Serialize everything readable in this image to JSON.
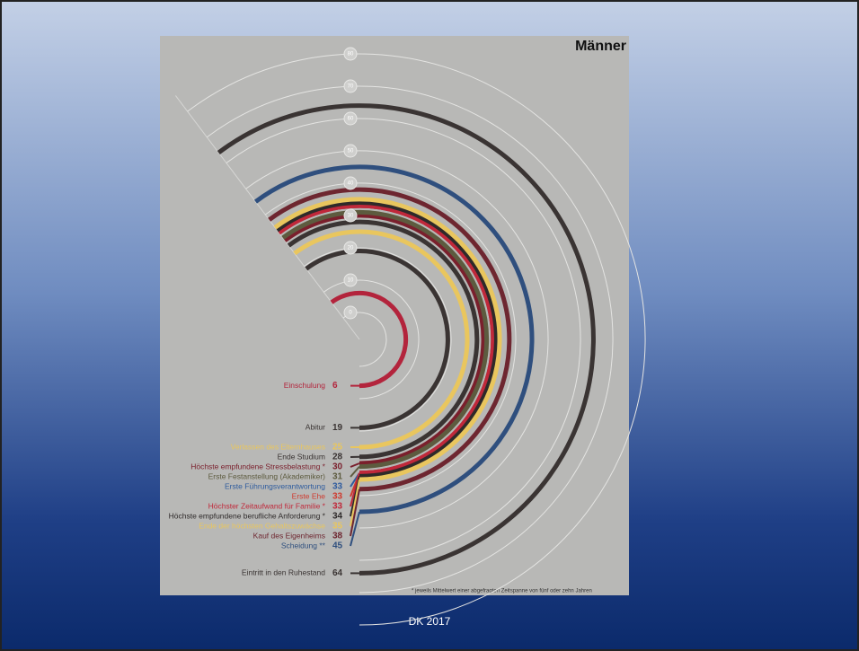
{
  "chart_data": {
    "type": "radial-arc",
    "title": "Männer",
    "categories": [
      "Einschulung",
      "Abitur",
      "Verlassen des Elternhauses",
      "Ende Studium",
      "Höchste empfundene Stressbelastung *",
      "Erste Festanstellung (Akademiker)",
      "Erste Führungsverantwortung",
      "Erste Ehe",
      "Höchster Zeitaufwand für Familie *",
      "Höchste empfundene berufliche Anforderung *",
      "Ende der höchsten Gehaltszuwächse",
      "Kauf des Eigenheims",
      "Scheidung **",
      "Eintritt in den Ruhestand"
    ],
    "values": [
      6,
      19,
      25,
      28,
      30,
      31,
      33,
      33,
      33,
      34,
      35,
      38,
      45,
      64
    ],
    "colors": [
      "#b3243c",
      "#3a3433",
      "#e9c65e",
      "#3a3433",
      "#7a1f2c",
      "#5d5b3f",
      "#2f5c9e",
      "#cf3a2e",
      "#c0283a",
      "#2e2a2a",
      "#e9c65e",
      "#6e2630",
      "#2f4f7e",
      "#3a3433"
    ],
    "ylim": [
      0,
      80
    ],
    "yticks": [
      0,
      10,
      20,
      30,
      40,
      50,
      60,
      70,
      80
    ],
    "note": "* jeweils Mittelwert einer abgefragten Zeitspanne von fünf oder zehn Jahren"
  },
  "footer": "DK 2017"
}
